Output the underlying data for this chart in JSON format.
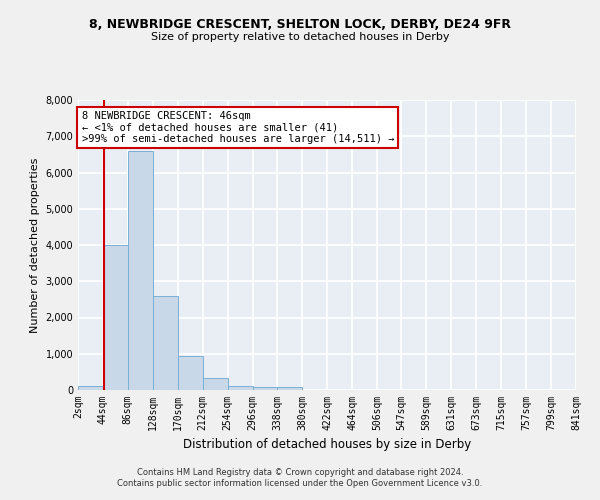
{
  "title": "8, NEWBRIDGE CRESCENT, SHELTON LOCK, DERBY, DE24 9FR",
  "subtitle": "Size of property relative to detached houses in Derby",
  "xlabel": "Distribution of detached houses by size in Derby",
  "ylabel": "Number of detached properties",
  "bin_edges": [
    2,
    44,
    86,
    128,
    170,
    212,
    254,
    296,
    338,
    380,
    422,
    464,
    506,
    547,
    589,
    631,
    673,
    715,
    757,
    799,
    841
  ],
  "bar_heights": [
    100,
    4000,
    6600,
    2600,
    950,
    320,
    120,
    80,
    80,
    5,
    5,
    0,
    0,
    0,
    0,
    0,
    0,
    0,
    0,
    0
  ],
  "bar_color": "#c8d8e8",
  "bar_edge_color": "#7bafd4",
  "background_color": "#e8eef4",
  "grid_color": "#ffffff",
  "fig_background": "#f0f0f0",
  "vline_x": 46,
  "vline_color": "#cc0000",
  "annotation_text": "8 NEWBRIDGE CRESCENT: 46sqm\n← <1% of detached houses are smaller (41)\n>99% of semi-detached houses are larger (14,511) →",
  "annotation_box_color": "#cc0000",
  "ylim": [
    0,
    8000
  ],
  "yticks": [
    0,
    1000,
    2000,
    3000,
    4000,
    5000,
    6000,
    7000,
    8000
  ],
  "footer_line1": "Contains HM Land Registry data © Crown copyright and database right 2024.",
  "footer_line2": "Contains public sector information licensed under the Open Government Licence v3.0.",
  "tick_labels": [
    "2sqm",
    "44sqm",
    "86sqm",
    "128sqm",
    "170sqm",
    "212sqm",
    "254sqm",
    "296sqm",
    "338sqm",
    "380sqm",
    "422sqm",
    "464sqm",
    "506sqm",
    "547sqm",
    "589sqm",
    "631sqm",
    "673sqm",
    "715sqm",
    "757sqm",
    "799sqm",
    "841sqm"
  ],
  "title_fontsize": 9,
  "subtitle_fontsize": 8,
  "ylabel_fontsize": 8,
  "xlabel_fontsize": 8.5
}
